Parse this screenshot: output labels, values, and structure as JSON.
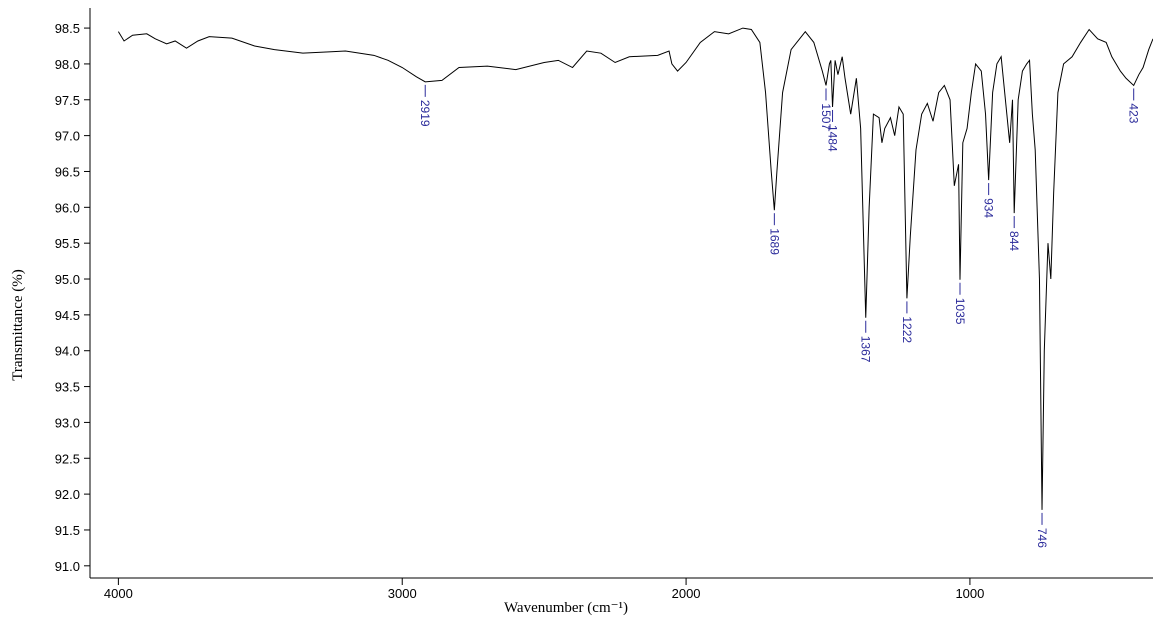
{
  "chart_data": {
    "type": "line",
    "x_label": "Wavenumber (cm⁻¹)",
    "y_label": "Transmittance (%)",
    "xlim": [
      4100,
      355
    ],
    "ylim": [
      90.83,
      98.78
    ],
    "xticks": [
      4000,
      3000,
      2000,
      1000
    ],
    "yticks": [
      {
        "value": 91,
        "label": "91.0"
      },
      {
        "value": 91.5,
        "label": "91.5"
      },
      {
        "value": 92,
        "label": "92.0"
      },
      {
        "value": 92.5,
        "label": "92.5"
      },
      {
        "value": 93,
        "label": "93.0"
      },
      {
        "value": 93.5,
        "label": "93.5"
      },
      {
        "value": 94,
        "label": "94.0"
      },
      {
        "value": 94.5,
        "label": "94.5"
      },
      {
        "value": 95,
        "label": "95.0"
      },
      {
        "value": 95.5,
        "label": "95.5"
      },
      {
        "value": 96,
        "label": "96.0"
      },
      {
        "value": 96.5,
        "label": "96.5"
      },
      {
        "value": 97,
        "label": "97.0"
      },
      {
        "value": 97.5,
        "label": "97.5"
      },
      {
        "value": 98,
        "label": "98.0"
      },
      {
        "value": 98.5,
        "label": "98.5"
      }
    ],
    "series": [
      {
        "color": "#000000",
        "x": [
          4000,
          3980,
          3950,
          3900,
          3870,
          3830,
          3800,
          3760,
          3720,
          3680,
          3600,
          3520,
          3450,
          3350,
          3250,
          3200,
          3100,
          3050,
          3000,
          2950,
          2919,
          2860,
          2800,
          2700,
          2600,
          2500,
          2450,
          2400,
          2350,
          2300,
          2250,
          2200,
          2100,
          2060,
          2050,
          2030,
          2000,
          1950,
          1900,
          1850,
          1800,
          1770,
          1740,
          1720,
          1700,
          1689,
          1680,
          1660,
          1630,
          1580,
          1550,
          1520,
          1507,
          1495,
          1490,
          1484,
          1475,
          1465,
          1450,
          1440,
          1420,
          1400,
          1385,
          1367,
          1355,
          1340,
          1320,
          1310,
          1300,
          1280,
          1265,
          1250,
          1235,
          1222,
          1210,
          1190,
          1170,
          1150,
          1130,
          1110,
          1090,
          1070,
          1055,
          1040,
          1035,
          1025,
          1010,
          995,
          980,
          960,
          945,
          934,
          920,
          905,
          890,
          870,
          860,
          850,
          844,
          830,
          815,
          800,
          790,
          780,
          770,
          755,
          746,
          738,
          725,
          715,
          705,
          690,
          670,
          640,
          610,
          580,
          550,
          520,
          500,
          470,
          450,
          423,
          405,
          390,
          370,
          355
        ],
        "values": [
          98.45,
          98.32,
          98.4,
          98.42,
          98.35,
          98.28,
          98.32,
          98.22,
          98.32,
          98.38,
          98.36,
          98.25,
          98.2,
          98.15,
          98.17,
          98.18,
          98.12,
          98.05,
          97.95,
          97.82,
          97.75,
          97.77,
          97.95,
          97.97,
          97.92,
          98.02,
          98.05,
          97.95,
          98.18,
          98.15,
          98.02,
          98.1,
          98.12,
          98.18,
          98.0,
          97.9,
          98.02,
          98.3,
          98.45,
          98.42,
          98.5,
          98.48,
          98.3,
          97.6,
          96.5,
          95.96,
          96.5,
          97.6,
          98.2,
          98.45,
          98.3,
          97.9,
          97.7,
          98.0,
          98.05,
          97.4,
          98.05,
          97.85,
          98.1,
          97.8,
          97.3,
          97.8,
          97.1,
          94.46,
          96.0,
          97.3,
          97.25,
          96.9,
          97.1,
          97.25,
          97.0,
          97.4,
          97.3,
          94.73,
          95.6,
          96.8,
          97.3,
          97.45,
          97.2,
          97.6,
          97.7,
          97.5,
          96.3,
          96.6,
          94.99,
          96.9,
          97.1,
          97.6,
          98.0,
          97.9,
          97.3,
          96.38,
          97.6,
          98.0,
          98.1,
          97.3,
          96.9,
          97.5,
          95.92,
          97.5,
          97.9,
          98.0,
          98.05,
          97.3,
          96.8,
          95.0,
          91.78,
          94.0,
          95.5,
          95.0,
          96.2,
          97.6,
          98.0,
          98.1,
          98.3,
          98.48,
          98.35,
          98.3,
          98.1,
          97.9,
          97.8,
          97.7,
          97.85,
          97.95,
          98.2,
          98.35
        ]
      }
    ],
    "annotations": [
      {
        "x": 2919,
        "y": 97.75
      },
      {
        "x": 1689,
        "y": 95.96
      },
      {
        "x": 1507,
        "y": 97.7
      },
      {
        "x": 1484,
        "y": 97.4
      },
      {
        "x": 1367,
        "y": 94.46
      },
      {
        "x": 1222,
        "y": 94.73
      },
      {
        "x": 1035,
        "y": 94.99
      },
      {
        "x": 934,
        "y": 96.38
      },
      {
        "x": 844,
        "y": 95.92
      },
      {
        "x": 746,
        "y": 91.78
      },
      {
        "x": 423,
        "y": 97.7
      }
    ],
    "annotation_color": "#2a2a9a"
  }
}
